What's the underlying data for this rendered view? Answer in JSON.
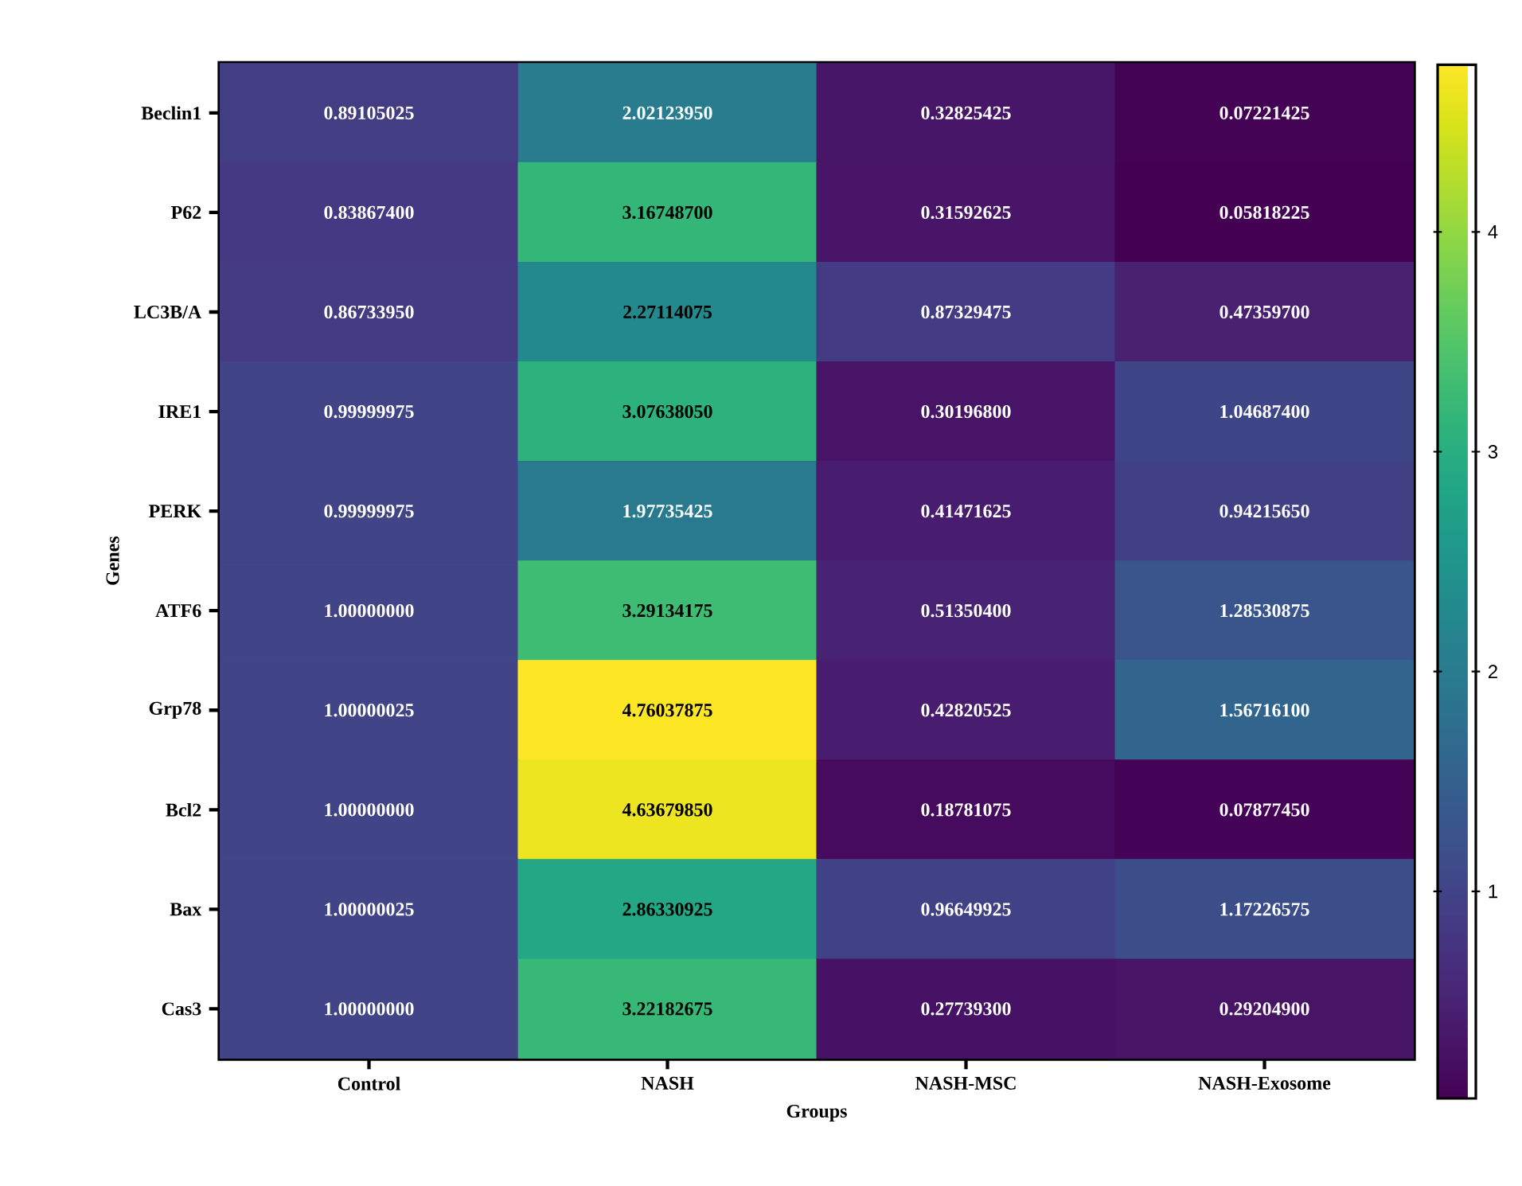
{
  "chart_data": {
    "type": "heatmap",
    "xlabel": "Groups",
    "ylabel": "Genes",
    "categories": [
      "Control",
      "NASH",
      "NASH-MSC",
      "NASH-Exosome"
    ],
    "y_categories": [
      "Beclin1",
      "P62",
      "LC3B/A",
      "IRE1",
      "PERK",
      "ATF6",
      "Grp78",
      "Bcl2",
      "Bax",
      "Cas3"
    ],
    "cells": [
      [
        0.89105025,
        2.0212395,
        0.32825425,
        0.07221425
      ],
      [
        0.838674,
        3.167487,
        0.31592625,
        0.05818225
      ],
      [
        0.8673395,
        2.27114075,
        0.87329475,
        0.473597
      ],
      [
        0.99999975,
        3.0763805,
        0.301968,
        1.046874
      ],
      [
        0.99999975,
        1.97735425,
        0.41471625,
        0.9421565
      ],
      [
        1.0,
        3.29134175,
        0.513504,
        1.28530875
      ],
      [
        1.00000025,
        4.76037875,
        0.42820525,
        1.567161
      ],
      [
        1.0,
        4.6367985,
        0.18781075,
        0.0787745
      ],
      [
        1.00000025,
        2.86330925,
        0.96649925,
        1.17226575
      ],
      [
        1.0,
        3.22182675,
        0.277393,
        0.292049
      ]
    ],
    "cell_labels": [
      [
        "0.89105025",
        "2.02123950",
        "0.32825425",
        "0.07221425"
      ],
      [
        "0.83867400",
        "3.16748700",
        "0.31592625",
        "0.05818225"
      ],
      [
        "0.86733950",
        "2.27114075",
        "0.87329475",
        "0.47359700"
      ],
      [
        "0.99999975",
        "3.07638050",
        "0.30196800",
        "1.04687400"
      ],
      [
        "0.99999975",
        "1.97735425",
        "0.41471625",
        "0.94215650"
      ],
      [
        "1.00000000",
        "3.29134175",
        "0.51350400",
        "1.28530875"
      ],
      [
        "1.00000025",
        "4.76037875",
        "0.42820525",
        "1.56716100"
      ],
      [
        "1.00000000",
        "4.63679850",
        "0.18781075",
        "0.07877450"
      ],
      [
        "1.00000025",
        "2.86330925",
        "0.96649925",
        "1.17226575"
      ],
      [
        "1.00000000",
        "3.22182675",
        "0.27739300",
        "0.29204900"
      ]
    ],
    "clim": [
      0.05818225,
      4.76037875
    ],
    "cticks": [
      1,
      2,
      3,
      4
    ]
  }
}
